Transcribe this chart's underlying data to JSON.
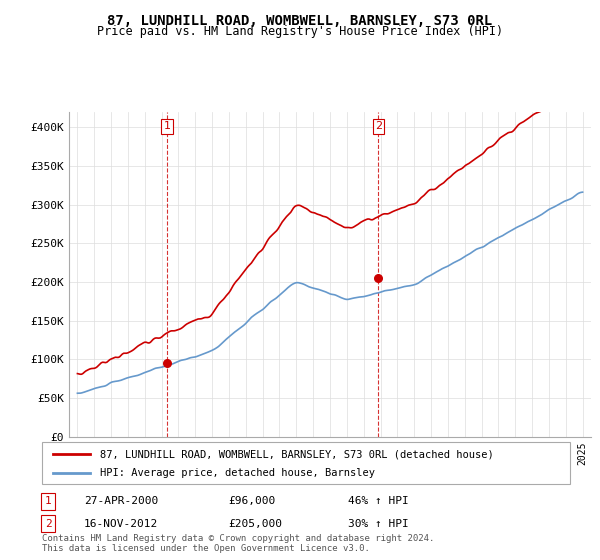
{
  "title": "87, LUNDHILL ROAD, WOMBWELL, BARNSLEY, S73 0RL",
  "subtitle": "Price paid vs. HM Land Registry's House Price Index (HPI)",
  "legend_line1": "87, LUNDHILL ROAD, WOMBWELL, BARNSLEY, S73 0RL (detached house)",
  "legend_line2": "HPI: Average price, detached house, Barnsley",
  "footer": "Contains HM Land Registry data © Crown copyright and database right 2024.\nThis data is licensed under the Open Government Licence v3.0.",
  "sale1_date": "27-APR-2000",
  "sale1_price": 96000,
  "sale1_hpi": "46% ↑ HPI",
  "sale2_date": "16-NOV-2012",
  "sale2_price": 205000,
  "sale2_hpi": "30% ↑ HPI",
  "red_color": "#cc0000",
  "blue_color": "#6699cc",
  "vline_color": "#cc0000",
  "dot_color": "#cc0000",
  "ylim": [
    0,
    420000
  ],
  "yticks": [
    0,
    50000,
    100000,
    150000,
    200000,
    250000,
    300000,
    350000,
    400000
  ],
  "ytick_labels": [
    "£0",
    "£50K",
    "£100K",
    "£150K",
    "£200K",
    "£250K",
    "£300K",
    "£350K",
    "£400K"
  ]
}
